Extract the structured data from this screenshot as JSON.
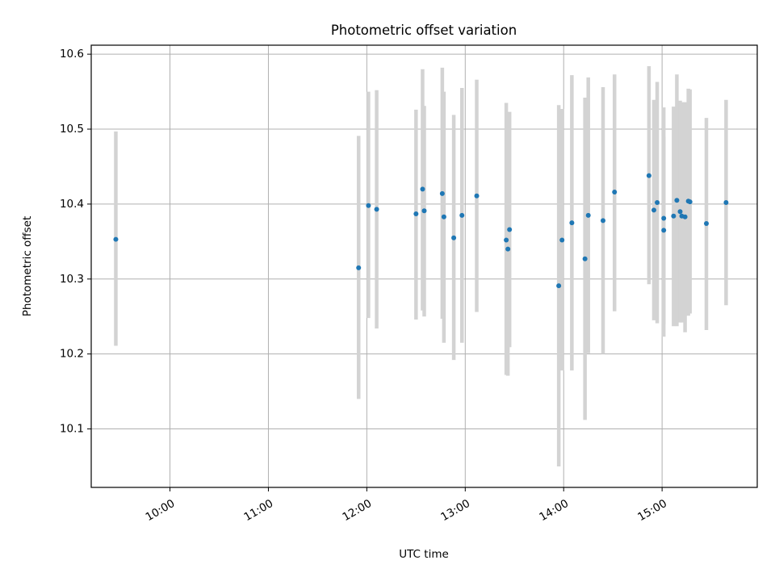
{
  "chart_data": {
    "type": "scatter",
    "title": "Photometric offset variation",
    "xlabel": "UTC time",
    "ylabel": "Photometric offset",
    "xlim": [
      "09:12",
      "15:58"
    ],
    "ylim": [
      10.022,
      10.612
    ],
    "x_ticks": [
      "10:00",
      "11:00",
      "12:00",
      "13:00",
      "14:00",
      "15:00"
    ],
    "y_ticks": [
      10.1,
      10.2,
      10.3,
      10.4,
      10.5,
      10.6
    ],
    "y_tick_labels": [
      "10.1",
      "10.2",
      "10.3",
      "10.4",
      "10.5",
      "10.6"
    ],
    "grid": true,
    "marker_color": "#1f77b4",
    "errorbar_color": "#d3d3d3",
    "points": [
      {
        "x": "09:27",
        "y": 10.353,
        "ylow": 10.211,
        "yhigh": 10.497
      },
      {
        "x": "11:55",
        "y": 10.315,
        "ylow": 10.14,
        "yhigh": 10.491
      },
      {
        "x": "12:01",
        "y": 10.398,
        "ylow": 10.248,
        "yhigh": 10.55
      },
      {
        "x": "12:06",
        "y": 10.393,
        "ylow": 10.234,
        "yhigh": 10.552
      },
      {
        "x": "12:30",
        "y": 10.387,
        "ylow": 10.246,
        "yhigh": 10.526
      },
      {
        "x": "12:34",
        "y": 10.42,
        "ylow": 10.258,
        "yhigh": 10.58
      },
      {
        "x": "12:35",
        "y": 10.391,
        "ylow": 10.25,
        "yhigh": 10.531
      },
      {
        "x": "12:46",
        "y": 10.414,
        "ylow": 10.247,
        "yhigh": 10.582
      },
      {
        "x": "12:47",
        "y": 10.383,
        "ylow": 10.215,
        "yhigh": 10.55
      },
      {
        "x": "12:53",
        "y": 10.355,
        "ylow": 10.192,
        "yhigh": 10.519
      },
      {
        "x": "12:58",
        "y": 10.385,
        "ylow": 10.215,
        "yhigh": 10.555
      },
      {
        "x": "13:07",
        "y": 10.411,
        "ylow": 10.256,
        "yhigh": 10.566
      },
      {
        "x": "13:25",
        "y": 10.352,
        "ylow": 10.172,
        "yhigh": 10.535
      },
      {
        "x": "13:26",
        "y": 10.34,
        "ylow": 10.171,
        "yhigh": 10.511
      },
      {
        "x": "13:27",
        "y": 10.366,
        "ylow": 10.209,
        "yhigh": 10.523
      },
      {
        "x": "13:57",
        "y": 10.291,
        "ylow": 10.05,
        "yhigh": 10.532
      },
      {
        "x": "13:59",
        "y": 10.352,
        "ylow": 10.178,
        "yhigh": 10.527
      },
      {
        "x": "14:05",
        "y": 10.375,
        "ylow": 10.178,
        "yhigh": 10.572
      },
      {
        "x": "14:13",
        "y": 10.327,
        "ylow": 10.112,
        "yhigh": 10.542
      },
      {
        "x": "14:15",
        "y": 10.385,
        "ylow": 10.201,
        "yhigh": 10.569
      },
      {
        "x": "14:24",
        "y": 10.378,
        "ylow": 10.2,
        "yhigh": 10.556
      },
      {
        "x": "14:31",
        "y": 10.416,
        "ylow": 10.257,
        "yhigh": 10.573
      },
      {
        "x": "14:52",
        "y": 10.438,
        "ylow": 10.293,
        "yhigh": 10.584
      },
      {
        "x": "14:55",
        "y": 10.392,
        "ylow": 10.245,
        "yhigh": 10.539
      },
      {
        "x": "14:57",
        "y": 10.402,
        "ylow": 10.241,
        "yhigh": 10.563
      },
      {
        "x": "15:01",
        "y": 10.381,
        "ylow": 10.223,
        "yhigh": 10.529
      },
      {
        "x": "15:01",
        "y": 10.365,
        "ylow": 10.24,
        "yhigh": 10.49
      },
      {
        "x": "15:07",
        "y": 10.384,
        "ylow": 10.237,
        "yhigh": 10.53
      },
      {
        "x": "15:09",
        "y": 10.405,
        "ylow": 10.237,
        "yhigh": 10.573
      },
      {
        "x": "15:11",
        "y": 10.39,
        "ylow": 10.242,
        "yhigh": 10.538
      },
      {
        "x": "15:12",
        "y": 10.384,
        "ylow": 10.242,
        "yhigh": 10.536
      },
      {
        "x": "15:14",
        "y": 10.383,
        "ylow": 10.229,
        "yhigh": 10.536
      },
      {
        "x": "15:16",
        "y": 10.404,
        "ylow": 10.251,
        "yhigh": 10.554
      },
      {
        "x": "15:17",
        "y": 10.403,
        "ylow": 10.254,
        "yhigh": 10.553
      },
      {
        "x": "15:27",
        "y": 10.374,
        "ylow": 10.232,
        "yhigh": 10.515
      },
      {
        "x": "15:39",
        "y": 10.402,
        "ylow": 10.265,
        "yhigh": 10.539
      }
    ]
  }
}
